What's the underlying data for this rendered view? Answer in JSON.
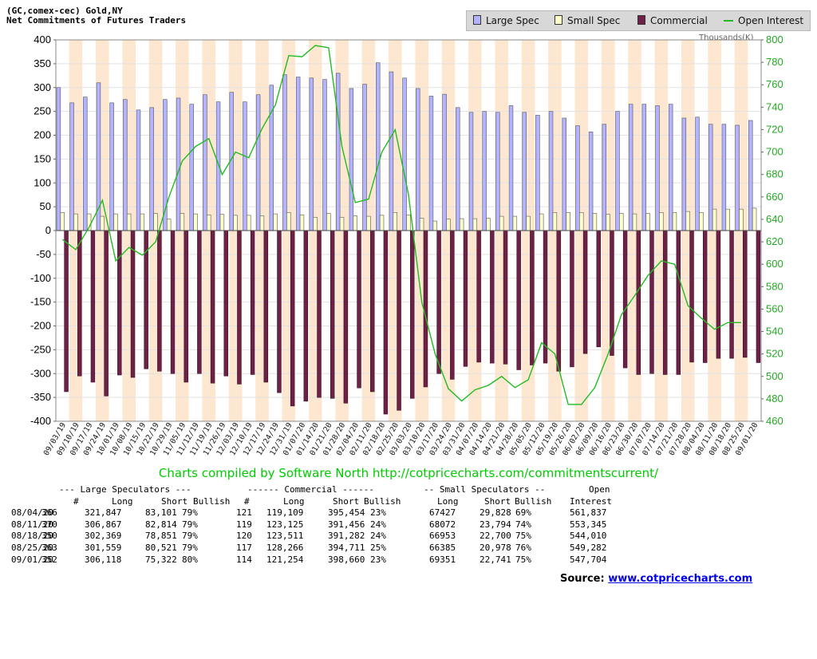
{
  "header": {
    "title_line1": "(GC,comex-cec) Gold,NY",
    "title_line2": "Net Commitments of Futures Traders",
    "units_right": "Thousands(K)"
  },
  "colors": {
    "large_spec": "#b3b3ff",
    "small_spec": "#ffffcc",
    "commercial": "#6e2146",
    "open_interest": "#22bb22",
    "band_light": "#fde7d0",
    "axis_right": "#22aa22"
  },
  "chart_data": {
    "type": "bar",
    "x_labels": [
      "09/03/19",
      "09/10/19",
      "09/17/19",
      "09/24/19",
      "10/01/19",
      "10/08/19",
      "10/15/19",
      "10/22/19",
      "10/29/19",
      "11/05/19",
      "11/12/19",
      "11/19/19",
      "11/26/19",
      "12/03/19",
      "12/10/19",
      "12/17/19",
      "12/24/19",
      "12/31/19",
      "01/07/20",
      "01/14/20",
      "01/21/20",
      "01/28/20",
      "02/04/20",
      "02/11/20",
      "02/18/20",
      "02/25/20",
      "03/03/20",
      "03/10/20",
      "03/17/20",
      "03/24/20",
      "03/31/20",
      "04/07/20",
      "04/14/20",
      "04/21/20",
      "04/28/20",
      "05/05/20",
      "05/12/20",
      "05/19/20",
      "05/26/20",
      "06/02/20",
      "06/09/20",
      "06/16/20",
      "06/23/20",
      "06/30/20",
      "07/07/20",
      "07/14/20",
      "07/21/20",
      "07/28/20",
      "08/04/20",
      "08/11/20",
      "08/18/20",
      "08/25/20",
      "09/01/20"
    ],
    "series": [
      {
        "name": "Large Spec",
        "values": [
          300,
          268,
          280,
          310,
          268,
          275,
          253,
          258,
          275,
          278,
          265,
          285,
          270,
          290,
          270,
          285,
          305,
          327,
          322,
          320,
          317,
          330,
          298,
          307,
          352,
          333,
          320,
          298,
          282,
          286,
          258,
          248,
          250,
          248,
          262,
          248,
          242,
          250,
          236,
          220,
          207,
          223,
          250,
          265,
          265,
          262,
          265,
          236,
          238,
          223,
          223,
          221,
          231
        ]
      },
      {
        "name": "Small Spec",
        "values": [
          38,
          35,
          35,
          30,
          35,
          35,
          35,
          36,
          24,
          36,
          35,
          33,
          34,
          32,
          32,
          31,
          35,
          38,
          33,
          28,
          36,
          28,
          31,
          30,
          32,
          38,
          33,
          26,
          20,
          24,
          25,
          25,
          26,
          30,
          30,
          30,
          35,
          38,
          38,
          38,
          36,
          34,
          36,
          35,
          36,
          38,
          38,
          40,
          38,
          45,
          45,
          45,
          47
        ]
      },
      {
        "name": "Commercial",
        "values": [
          -338,
          -305,
          -318,
          -347,
          -303,
          -308,
          -290,
          -295,
          -300,
          -318,
          -300,
          -320,
          -305,
          -322,
          -302,
          -318,
          -340,
          -368,
          -358,
          -350,
          -352,
          -362,
          -330,
          -338,
          -385,
          -377,
          -352,
          -328,
          -300,
          -312,
          -285,
          -276,
          -278,
          -280,
          -292,
          -282,
          -278,
          -295,
          -286,
          -258,
          -244,
          -262,
          -288,
          -302,
          -300,
          -302,
          -302,
          -276,
          -277,
          -268,
          -268,
          -266,
          -277
        ]
      },
      {
        "name": "Open Interest",
        "axis": "right",
        "values": [
          622,
          613,
          633,
          657,
          603,
          615,
          608,
          620,
          660,
          692,
          705,
          712,
          680,
          700,
          695,
          721,
          742,
          786,
          785,
          795,
          793,
          705,
          655,
          658,
          700,
          720,
          662,
          566,
          520,
          489,
          478,
          488,
          492,
          500,
          490,
          497,
          530,
          520,
          475,
          475,
          490,
          520,
          555,
          572,
          590,
          603,
          600,
          563,
          552,
          542,
          548,
          548,
          null
        ]
      }
    ],
    "y_left_ticks": [
      "400",
      "350",
      "300",
      "250",
      "200",
      "150",
      "100",
      "50",
      "0",
      "-50",
      "-100",
      "-150",
      "-200",
      "-250",
      "-300",
      "-350",
      "-400"
    ],
    "y_right_ticks": [
      "800",
      "780",
      "760",
      "740",
      "720",
      "700",
      "680",
      "660",
      "640",
      "620",
      "600",
      "580",
      "560",
      "540",
      "520",
      "500",
      "480",
      "460"
    ],
    "ylim_left": [
      -400,
      400
    ],
    "ylim_right": [
      460,
      800
    ]
  },
  "legend": {
    "large_spec": "Large Spec",
    "small_spec": "Small Spec",
    "commercial": "Commercial",
    "open_interest": "Open Interest"
  },
  "caption": "Charts compiled by Software North  http://cotpricecharts.com/commitmentscurrent/",
  "table": {
    "group_headers": {
      "large": "--- Large Speculators ---",
      "commercial": "------ Commercial ------",
      "small": "-- Small Speculators --",
      "open": "Open"
    },
    "col_headers": {
      "num1": "#",
      "long1": "Long",
      "short1": "Short",
      "bull1": "Bullish",
      "num2": "#",
      "long2": "Long",
      "short2": "Short",
      "bull2": "Bullish",
      "long3": "Long",
      "short3": "Short",
      "bull3": "Bullish",
      "oi": "Interest"
    },
    "rows": [
      {
        "date": "08/04/20",
        "n1": "366",
        "l1": "321,847",
        "s1": "83,101",
        "b1": "79%",
        "n2": "121",
        "l2": "119,109",
        "s2": "395,454",
        "b2": "23%",
        "l3": "67427",
        "s3": "29,828",
        "b3": "69%",
        "oi": "561,837"
      },
      {
        "date": "08/11/20",
        "n1": "370",
        "l1": "306,867",
        "s1": "82,814",
        "b1": "79%",
        "n2": "119",
        "l2": "123,125",
        "s2": "391,456",
        "b2": "24%",
        "l3": "68072",
        "s3": "23,794",
        "b3": "74%",
        "oi": "553,345"
      },
      {
        "date": "08/18/20",
        "n1": "350",
        "l1": "302,369",
        "s1": "78,851",
        "b1": "79%",
        "n2": "120",
        "l2": "123,511",
        "s2": "391,282",
        "b2": "24%",
        "l3": "66953",
        "s3": "22,700",
        "b3": "75%",
        "oi": "544,010"
      },
      {
        "date": "08/25/20",
        "n1": "363",
        "l1": "301,559",
        "s1": "80,521",
        "b1": "79%",
        "n2": "117",
        "l2": "128,266",
        "s2": "394,711",
        "b2": "25%",
        "l3": "66385",
        "s3": "20,978",
        "b3": "76%",
        "oi": "549,282"
      },
      {
        "date": "09/01/20",
        "n1": "352",
        "l1": "306,118",
        "s1": "75,322",
        "b1": "80%",
        "n2": "114",
        "l2": "121,254",
        "s2": "398,660",
        "b2": "23%",
        "l3": "69351",
        "s3": "22,741",
        "b3": "75%",
        "oi": "547,704"
      }
    ]
  },
  "source": {
    "label": "Source:",
    "link": "www.cotpricecharts.com"
  }
}
